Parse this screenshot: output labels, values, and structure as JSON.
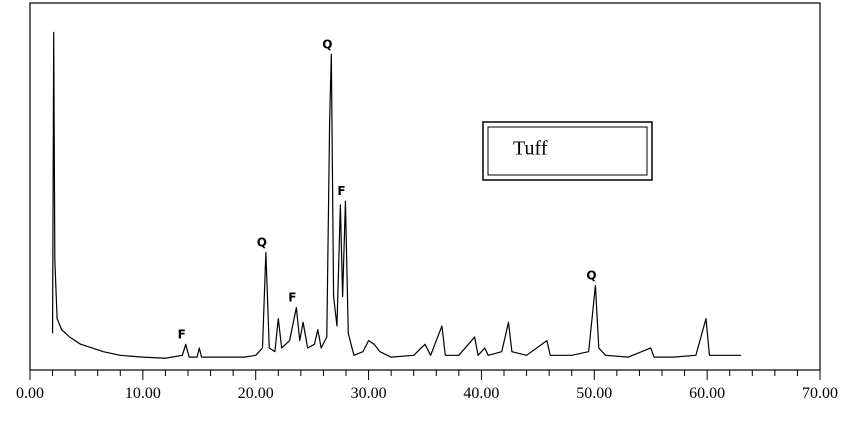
{
  "chart_data": {
    "type": "line",
    "x": [
      2.0,
      2.1,
      2.2,
      2.4,
      2.8,
      3.5,
      4.5,
      5.5,
      6.5,
      8,
      10,
      12,
      13.5,
      13.8,
      14.1,
      14.8,
      15.0,
      15.2,
      17,
      19,
      20,
      20.6,
      20.9,
      21.2,
      21.7,
      22.0,
      22.3,
      23.0,
      23.6,
      23.9,
      24.2,
      24.6,
      25.2,
      25.5,
      25.8,
      26.3,
      26.55,
      26.7,
      26.9,
      27.2,
      27.5,
      27.7,
      27.95,
      28.2,
      28.7,
      29.5,
      30.0,
      30.5,
      31,
      32,
      34,
      35,
      35.5,
      36.5,
      36.8,
      38,
      39.4,
      39.7,
      40.3,
      40.6,
      41.8,
      42.4,
      42.7,
      44,
      45.8,
      46.1,
      48,
      49.5,
      50.1,
      50.4,
      51,
      53,
      55,
      55.3,
      57,
      59,
      59.9,
      60.2,
      62,
      63
    ],
    "series": [
      {
        "name": "Tuff",
        "color": "#000000",
        "values": [
          10,
          92,
          30,
          14,
          11,
          9,
          7,
          6,
          5,
          4,
          3.5,
          3.2,
          4,
          7,
          3.5,
          3.5,
          6,
          3.5,
          3.5,
          3.5,
          4,
          6,
          32,
          6,
          5,
          14,
          6,
          8,
          17,
          8,
          13,
          6,
          7,
          11,
          6,
          9,
          68,
          86,
          20,
          12,
          45,
          20,
          46,
          10,
          4,
          5,
          8,
          7,
          5,
          3.5,
          4,
          7,
          4,
          12,
          4,
          4,
          9,
          4,
          6,
          4,
          5,
          13,
          5,
          4,
          8,
          4,
          4,
          5,
          23,
          6,
          4,
          3.5,
          6,
          3.5,
          3.5,
          4,
          14,
          4,
          4,
          4
        ]
      }
    ],
    "xlim": [
      0,
      70
    ],
    "ylim": [
      0,
      100
    ],
    "xticks": [
      {
        "value": 0,
        "label": "0.00"
      },
      {
        "value": 10,
        "label": "10.00"
      },
      {
        "value": 20,
        "label": "20.00"
      },
      {
        "value": 30,
        "label": "30.00"
      },
      {
        "value": 40,
        "label": "40.00"
      },
      {
        "value": 50,
        "label": "50.00"
      },
      {
        "value": 60,
        "label": "60.00"
      },
      {
        "value": 70,
        "label": "70.00"
      }
    ],
    "xminorticks": [
      2,
      4,
      6,
      8,
      12,
      14,
      16,
      18,
      22,
      24,
      26,
      28,
      32,
      34,
      36,
      38,
      42,
      44,
      46,
      48,
      52,
      54,
      56,
      58,
      62,
      64,
      66,
      68
    ],
    "annotations": [
      {
        "text": "Q",
        "x": 26.7,
        "y": 86
      },
      {
        "text": "F",
        "x": 27.95,
        "y": 46
      },
      {
        "text": "Q",
        "x": 20.9,
        "y": 32
      },
      {
        "text": "F",
        "x": 23.6,
        "y": 17
      },
      {
        "text": "F",
        "x": 13.8,
        "y": 7
      },
      {
        "text": "Q",
        "x": 50.1,
        "y": 23
      }
    ]
  }
}
